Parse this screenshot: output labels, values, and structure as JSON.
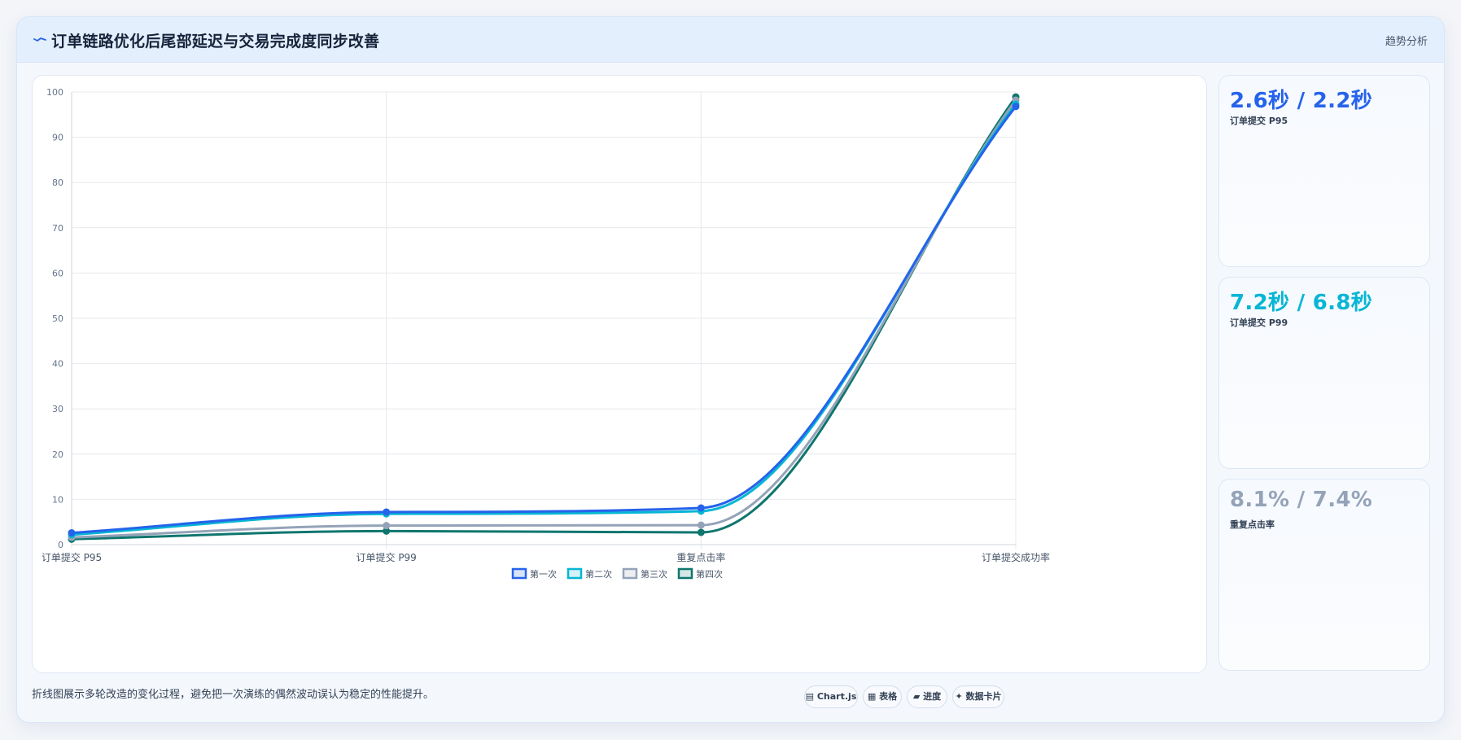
{
  "header": {
    "icon": "trend-line-icon",
    "title": "订单链路优化后尾部延迟与交易完成度同步改善",
    "link_label": "趋势分析"
  },
  "stats": [
    {
      "value": "2.6秒 / 2.2秒",
      "label": "订单提交 P95",
      "color": "#2563eb"
    },
    {
      "value": "7.2秒 / 6.8秒",
      "label": "订单提交 P99",
      "color": "#06b6d4"
    },
    {
      "value": "8.1% / 7.4%",
      "label": "重复点击率",
      "color": "#94a3b8"
    }
  ],
  "footnote": "折线图展示多轮改造的变化过程，避免把一次演练的偶然波动误认为稳定的性能提升。",
  "chips": [
    {
      "icon": "chart-icon",
      "label": "Chart.js"
    },
    {
      "icon": "table-icon",
      "label": "表格"
    },
    {
      "icon": "progress-icon",
      "label": "进度"
    },
    {
      "icon": "sparkle-icon",
      "label": "数据卡片"
    }
  ],
  "chart_data": {
    "type": "line",
    "categories": [
      "订单提交 P95",
      "订单提交 P99",
      "重复点击率",
      "订单提交成功率"
    ],
    "ylim": [
      0,
      100
    ],
    "yticks": [
      0,
      10,
      20,
      30,
      40,
      50,
      60,
      70,
      80,
      90,
      100
    ],
    "grid": true,
    "legend_position": "bottom",
    "series": [
      {
        "name": "第一次",
        "color": "#2563eb",
        "values": [
          2.6,
          7.2,
          8.1,
          96.8
        ]
      },
      {
        "name": "第二次",
        "color": "#06b6d4",
        "values": [
          2.2,
          6.8,
          7.4,
          97.3
        ]
      },
      {
        "name": "第三次",
        "color": "#94a3b8",
        "values": [
          1.6,
          4.2,
          4.3,
          98.2
        ]
      },
      {
        "name": "第四次",
        "color": "#0f766e",
        "values": [
          1.2,
          3.0,
          2.7,
          98.9
        ]
      }
    ]
  }
}
